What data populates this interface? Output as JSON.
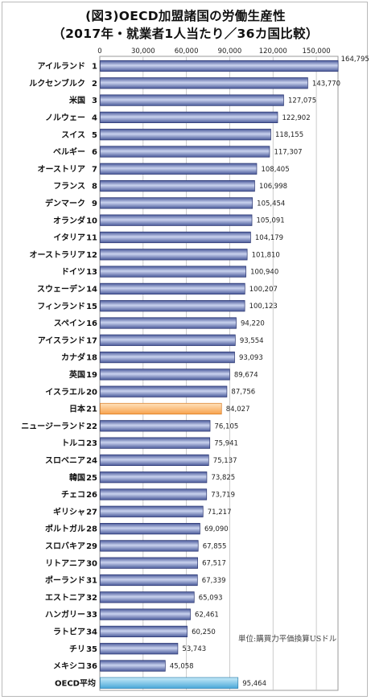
{
  "chart_data": {
    "type": "bar",
    "orientation": "horizontal",
    "title_line1": "(図3)OECD加盟諸国の労働生産性",
    "title_line2": "（2017年・就業者1人当たり／36カ国比較）",
    "unit_note": "単位:購買力平価換算USドル",
    "xlim": [
      0,
      165000
    ],
    "x_ticks": [
      0,
      30000,
      60000,
      90000,
      120000,
      150000
    ],
    "x_tick_labels": [
      "0",
      "30,000",
      "60,000",
      "90,000",
      "120,000",
      "150,000"
    ],
    "grid": true,
    "categories": [
      {
        "name": "アイルランド",
        "rank": "1",
        "value": 164795,
        "label": "164,795"
      },
      {
        "name": "ルクセンブルク",
        "rank": "2",
        "value": 143770,
        "label": "143,770"
      },
      {
        "name": "米国",
        "rank": "3",
        "value": 127075,
        "label": "127,075"
      },
      {
        "name": "ノルウェー",
        "rank": "4",
        "value": 122902,
        "label": "122,902"
      },
      {
        "name": "スイス",
        "rank": "5",
        "value": 118155,
        "label": "118,155"
      },
      {
        "name": "ベルギー",
        "rank": "6",
        "value": 117307,
        "label": "117,307"
      },
      {
        "name": "オーストリア",
        "rank": "7",
        "value": 108405,
        "label": "108,405"
      },
      {
        "name": "フランス",
        "rank": "8",
        "value": 106998,
        "label": "106,998"
      },
      {
        "name": "デンマーク",
        "rank": "9",
        "value": 105454,
        "label": "105,454"
      },
      {
        "name": "オランダ",
        "rank": "10",
        "value": 105091,
        "label": "105,091"
      },
      {
        "name": "イタリア",
        "rank": "11",
        "value": 104179,
        "label": "104,179"
      },
      {
        "name": "オーストラリア",
        "rank": "12",
        "value": 101810,
        "label": "101,810"
      },
      {
        "name": "ドイツ",
        "rank": "13",
        "value": 100940,
        "label": "100,940"
      },
      {
        "name": "スウェーデン",
        "rank": "14",
        "value": 100207,
        "label": "100,207"
      },
      {
        "name": "フィンランド",
        "rank": "15",
        "value": 100123,
        "label": "100,123"
      },
      {
        "name": "スペイン",
        "rank": "16",
        "value": 94220,
        "label": "94,220"
      },
      {
        "name": "アイスランド",
        "rank": "17",
        "value": 93554,
        "label": "93,554"
      },
      {
        "name": "カナダ",
        "rank": "18",
        "value": 93093,
        "label": "93,093"
      },
      {
        "name": "英国",
        "rank": "19",
        "value": 89674,
        "label": "89,674"
      },
      {
        "name": "イスラエル",
        "rank": "20",
        "value": 87756,
        "label": "87,756"
      },
      {
        "name": "日本",
        "rank": "21",
        "value": 84027,
        "label": "84,027",
        "highlight": "japan"
      },
      {
        "name": "ニュージーランド",
        "rank": "22",
        "value": 76105,
        "label": "76,105"
      },
      {
        "name": "トルコ",
        "rank": "23",
        "value": 75941,
        "label": "75,941"
      },
      {
        "name": "スロベニア",
        "rank": "24",
        "value": 75137,
        "label": "75,137"
      },
      {
        "name": "韓国",
        "rank": "25",
        "value": 73825,
        "label": "73,825"
      },
      {
        "name": "チェコ",
        "rank": "26",
        "value": 73719,
        "label": "73,719"
      },
      {
        "name": "ギリシャ",
        "rank": "27",
        "value": 71217,
        "label": "71,217"
      },
      {
        "name": "ポルトガル",
        "rank": "28",
        "value": 69090,
        "label": "69,090"
      },
      {
        "name": "スロバキア",
        "rank": "29",
        "value": 67855,
        "label": "67,855"
      },
      {
        "name": "リトアニア",
        "rank": "30",
        "value": 67517,
        "label": "67,517"
      },
      {
        "name": "ポーランド",
        "rank": "31",
        "value": 67339,
        "label": "67,339"
      },
      {
        "name": "エストニア",
        "rank": "32",
        "value": 65093,
        "label": "65,093"
      },
      {
        "name": "ハンガリー",
        "rank": "33",
        "value": 62461,
        "label": "62,461"
      },
      {
        "name": "ラトビア",
        "rank": "34",
        "value": 60250,
        "label": "60,250"
      },
      {
        "name": "チリ",
        "rank": "35",
        "value": 53743,
        "label": "53,743"
      },
      {
        "name": "メキシコ",
        "rank": "36",
        "value": 45058,
        "label": "45,058"
      },
      {
        "name": "OECD平均",
        "rank": "",
        "value": 95464,
        "label": "95,464",
        "highlight": "average"
      }
    ],
    "colors": {
      "bar": "#4a5a9a",
      "bar_light": "#c9d2ee",
      "japan": "#f7a24c",
      "japan_light": "#ffe2bd",
      "average": "#49a7d8",
      "average_light": "#c8ecf9",
      "grid": "#bfbfbf"
    }
  }
}
